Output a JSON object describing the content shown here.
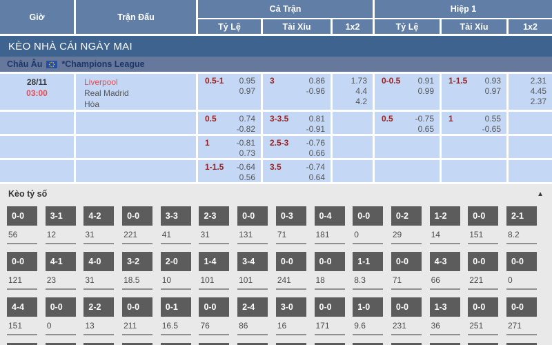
{
  "header": {
    "time": "Giờ",
    "match": "Trận Đấu",
    "full_time": "Cả Trận",
    "first_half": "Hiệp 1",
    "handicap": "Tỷ Lệ",
    "over_under": "Tài Xỉu",
    "one_x_two": "1x2"
  },
  "banner": {
    "title": "KÈO NHÀ CÁI NGÀY MAI"
  },
  "league": {
    "region": "Châu Âu",
    "name": "*Champions League",
    "flag": "eu-flag"
  },
  "match": {
    "date": "28/11",
    "time": "03:00",
    "home": "Liverpool",
    "away": "Real Madrid",
    "draw": "Hòa"
  },
  "odds_rows": [
    {
      "ft": {
        "hdp": "0.5-1",
        "hdp_o1": "0.95",
        "hdp_o2": "0.97",
        "ou": "3",
        "ou_o1": "0.86",
        "ou_o2": "-0.96",
        "x1": "1.73",
        "x2": "4.4",
        "x3": "4.2"
      },
      "h1": {
        "hdp": "0-0.5",
        "hdp_o1": "0.91",
        "hdp_o2": "0.99",
        "ou": "1-1.5",
        "ou_o1": "0.93",
        "ou_o2": "0.97",
        "x1": "2.31",
        "x2": "4.45",
        "x3": "2.37"
      }
    },
    {
      "ft": {
        "hdp": "0.5",
        "hdp_o1": "0.74",
        "hdp_o2": "-0.82",
        "ou": "3-3.5",
        "ou_o1": "0.81",
        "ou_o2": "-0.91"
      },
      "h1": {
        "hdp": "0.5",
        "hdp_o1": "-0.75",
        "hdp_o2": "0.65",
        "ou": "1",
        "ou_o1": "0.55",
        "ou_o2": "-0.65"
      }
    },
    {
      "ft": {
        "hdp": "1",
        "hdp_o1": "-0.81",
        "hdp_o2": "0.73",
        "ou": "2.5-3",
        "ou_o1": "-0.76",
        "ou_o2": "0.66"
      },
      "h1": {}
    },
    {
      "ft": {
        "hdp": "1-1.5",
        "hdp_o1": "-0.64",
        "hdp_o2": "0.56",
        "ou": "3.5",
        "ou_o1": "-0.74",
        "ou_o2": "0.64"
      },
      "h1": {}
    }
  ],
  "score_section": {
    "title": "Kèo tỷ số",
    "collapse_icon": "▲",
    "rows": [
      {
        "cells": [
          {
            "score": "0-0",
            "value": "56"
          },
          {
            "score": "3-1",
            "value": "12"
          },
          {
            "score": "4-2",
            "value": "31"
          },
          {
            "score": "0-0",
            "value": "221"
          },
          {
            "score": "3-3",
            "value": "41"
          },
          {
            "score": "2-3",
            "value": "31"
          },
          {
            "score": "0-0",
            "value": "131"
          },
          {
            "score": "0-3",
            "value": "71"
          },
          {
            "score": "0-4",
            "value": "181"
          },
          {
            "score": "0-0",
            "value": "0"
          },
          {
            "score": "0-2",
            "value": "29"
          },
          {
            "score": "1-2",
            "value": "14"
          },
          {
            "score": "0-0",
            "value": "151"
          },
          {
            "score": "2-1",
            "value": "8.2"
          }
        ]
      },
      {
        "cells": [
          {
            "score": "0-0",
            "value": "121"
          },
          {
            "score": "4-1",
            "value": "23"
          },
          {
            "score": "4-0",
            "value": "31"
          },
          {
            "score": "3-2",
            "value": "18.5"
          },
          {
            "score": "2-0",
            "value": "10"
          },
          {
            "score": "1-4",
            "value": "101"
          },
          {
            "score": "3-4",
            "value": "101"
          },
          {
            "score": "0-0",
            "value": "241"
          },
          {
            "score": "0-0",
            "value": "18"
          },
          {
            "score": "1-1",
            "value": "8.3"
          },
          {
            "score": "0-0",
            "value": "71"
          },
          {
            "score": "4-3",
            "value": "66"
          },
          {
            "score": "0-0",
            "value": "221"
          },
          {
            "score": "0-0",
            "value": "0"
          }
        ]
      },
      {
        "cells": [
          {
            "score": "4-4",
            "value": "151"
          },
          {
            "score": "0-0",
            "value": "0"
          },
          {
            "score": "2-2",
            "value": "13"
          },
          {
            "score": "0-0",
            "value": "211"
          },
          {
            "score": "0-1",
            "value": "16.5"
          },
          {
            "score": "0-0",
            "value": "76"
          },
          {
            "score": "2-4",
            "value": "86"
          },
          {
            "score": "3-0",
            "value": "16"
          },
          {
            "score": "0-0",
            "value": "171"
          },
          {
            "score": "1-0",
            "value": "9.6"
          },
          {
            "score": "0-0",
            "value": "231"
          },
          {
            "score": "1-3",
            "value": "36"
          },
          {
            "score": "0-0",
            "value": "251"
          },
          {
            "score": "0-0",
            "value": "271"
          }
        ]
      }
    ]
  },
  "colors": {
    "header_bg": "#617ea6",
    "banner_bg": "#3e638f",
    "league_bg": "#66789b",
    "cell_bg": "#c4d8f5",
    "handicap_red": "#992222",
    "accent_red": "#ec4a4f",
    "odds_text": "#555555",
    "score_box_bg": "#5c5c5c",
    "section_bg": "#e9e9e9"
  }
}
